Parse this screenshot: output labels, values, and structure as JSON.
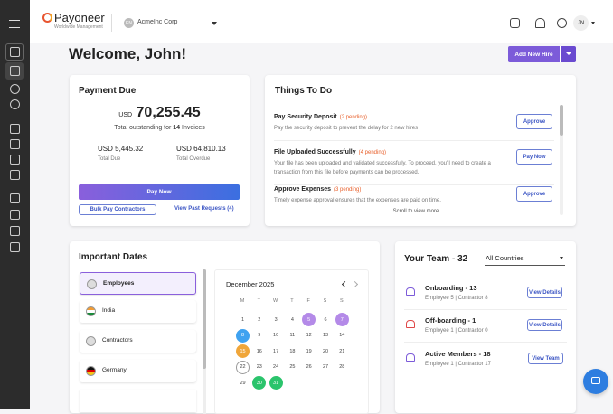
{
  "header": {
    "logo": "Payoneer",
    "logo_sub": "Worldwide Management",
    "account_initials": "EN",
    "account_name": "AcmeInc Corp",
    "user_initials": "JN"
  },
  "welcome": {
    "title": "Welcome, John!",
    "add_button": "Add New Hire"
  },
  "payment_due": {
    "title": "Payment Due",
    "currency": "USD",
    "amount": "70,255.45",
    "outstanding_prefix": "Total outstanding for",
    "invoice_count": "14",
    "outstanding_suffix": "Invoices",
    "total_due": "USD 5,445.32",
    "total_due_label": "Total Due",
    "total_overdue": "USD 64,810.13",
    "total_overdue_label": "Total Overdue",
    "pay_button": "Pay Now",
    "bulk_button": "Bulk Pay Contractors",
    "past_requests": "View Past Requests (4)"
  },
  "todo": {
    "title": "Things To Do",
    "items": [
      {
        "title": "Pay Security Deposit",
        "pending": "(2 pending)",
        "description": "Pay the security deposit to prevent the delay for 2 new hires",
        "action": "Approve"
      },
      {
        "title": "File Uploaded Successfully",
        "pending": "(4 pending)",
        "description": "Your file has been uploaded and validated successfully. To proceed, you'll need to create a transaction from this file before payments can be processed.",
        "action": "Pay Now"
      },
      {
        "title": "Approve Expenses",
        "pending": "(3 pending)",
        "description": "Timely expense approval ensures that the expenses are paid on time.",
        "action": "Approve"
      }
    ],
    "scroll_hint": "Scroll to view more"
  },
  "dates": {
    "title": "Important Dates",
    "groups": [
      "Employees",
      "India",
      "Contractors",
      "Germany"
    ],
    "month": "December 2025",
    "weekdays": [
      "M",
      "T",
      "W",
      "T",
      "F",
      "S",
      "S"
    ],
    "weeks": [
      [
        1,
        2,
        3,
        4,
        5,
        6,
        7
      ],
      [
        8,
        9,
        10,
        11,
        12,
        13,
        14
      ],
      [
        15,
        16,
        17,
        18,
        19,
        20,
        21
      ],
      [
        22,
        23,
        24,
        25,
        26,
        27,
        28
      ],
      [
        29,
        30,
        31
      ]
    ]
  },
  "team": {
    "title": "Your Team - 32",
    "filter": "All Countries",
    "groups": [
      {
        "title": "Onboarding - 13",
        "detail": "Employee 5 | Contractor 8",
        "action": "View Details"
      },
      {
        "title": "Off-boarding - 1",
        "detail": "Employee 1 | Contractor 0",
        "action": "View Details"
      },
      {
        "title": "Active Members - 18",
        "detail": "Employee 1 | Contractor 17",
        "action": "View Team"
      }
    ]
  }
}
